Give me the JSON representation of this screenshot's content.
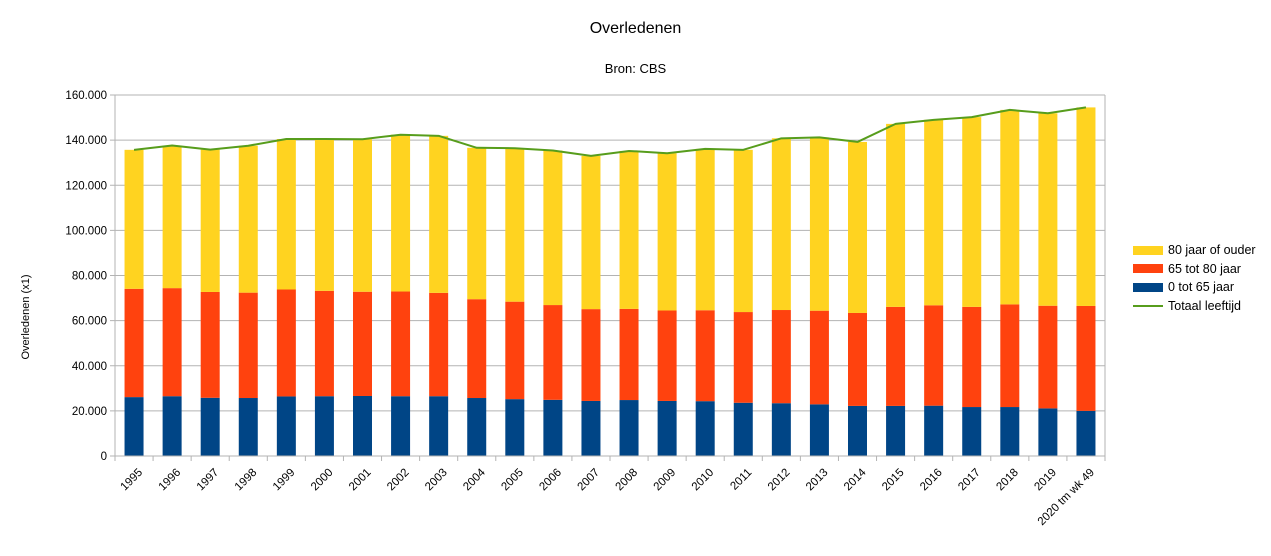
{
  "chart_data": {
    "type": "bar",
    "stacked": true,
    "title": "Overledenen",
    "subtitle": "Bron: CBS",
    "xlabel": "",
    "ylabel": "Overledenen (x1)",
    "ylim": [
      0,
      160000
    ],
    "ytick_step": 20000,
    "yticklabels": [
      "0",
      "20.000",
      "40.000",
      "60.000",
      "80.000",
      "100.000",
      "120.000",
      "140.000",
      "160.000"
    ],
    "grid": true,
    "axis_color": "#b3b3b3",
    "legend_position": "right",
    "categories": [
      "1995",
      "1996",
      "1997",
      "1998",
      "1999",
      "2000",
      "2001",
      "2002",
      "2003",
      "2004",
      "2005",
      "2006",
      "2007",
      "2008",
      "2009",
      "2010",
      "2011",
      "2012",
      "2013",
      "2014",
      "2015",
      "2016",
      "2017",
      "2018",
      "2019",
      "2020 tm wk 49"
    ],
    "series": [
      {
        "name": "0 tot 65 jaar",
        "color": "#004586",
        "values": [
          26100,
          26500,
          25800,
          25700,
          26400,
          26500,
          26600,
          26500,
          26500,
          25700,
          25200,
          24900,
          24400,
          24800,
          24400,
          24300,
          23600,
          23400,
          22900,
          22200,
          22200,
          22300,
          21700,
          21700,
          21100,
          20000
        ]
      },
      {
        "name": "65 tot 80 jaar",
        "color": "#FF420E",
        "values": [
          48000,
          47900,
          46900,
          46700,
          47400,
          46700,
          46200,
          46400,
          45800,
          43800,
          43200,
          42000,
          40700,
          40400,
          40100,
          40300,
          40200,
          41300,
          41500,
          41200,
          43900,
          44500,
          44400,
          45500,
          45500,
          46500
        ]
      },
      {
        "name": "80 jaar of ouder",
        "color": "#FFD320",
        "values": [
          61600,
          63200,
          63100,
          65100,
          66700,
          67300,
          67600,
          69500,
          69600,
          67100,
          68000,
          68500,
          67900,
          70000,
          69700,
          71500,
          71900,
          76100,
          76800,
          75800,
          81100,
          82200,
          84100,
          86200,
          85300,
          88000
        ]
      }
    ],
    "line_series": {
      "name": "Totaal leeftijd",
      "color": "#579D1C",
      "values": [
        135700,
        137600,
        135800,
        137500,
        140500,
        140500,
        140400,
        142400,
        141900,
        136600,
        136400,
        135400,
        133000,
        135200,
        134200,
        136100,
        135700,
        140800,
        141200,
        139200,
        147200,
        149000,
        150200,
        153400,
        151900,
        154500
      ]
    }
  },
  "legend": {
    "items": [
      {
        "label": "80 jaar of ouder",
        "color": "#FFD320",
        "type": "box"
      },
      {
        "label": "65 tot 80 jaar",
        "color": "#FF420E",
        "type": "box"
      },
      {
        "label": "0 tot 65 jaar",
        "color": "#004586",
        "type": "box"
      },
      {
        "label": "Totaal leeftijd",
        "color": "#579D1C",
        "type": "line"
      }
    ]
  }
}
